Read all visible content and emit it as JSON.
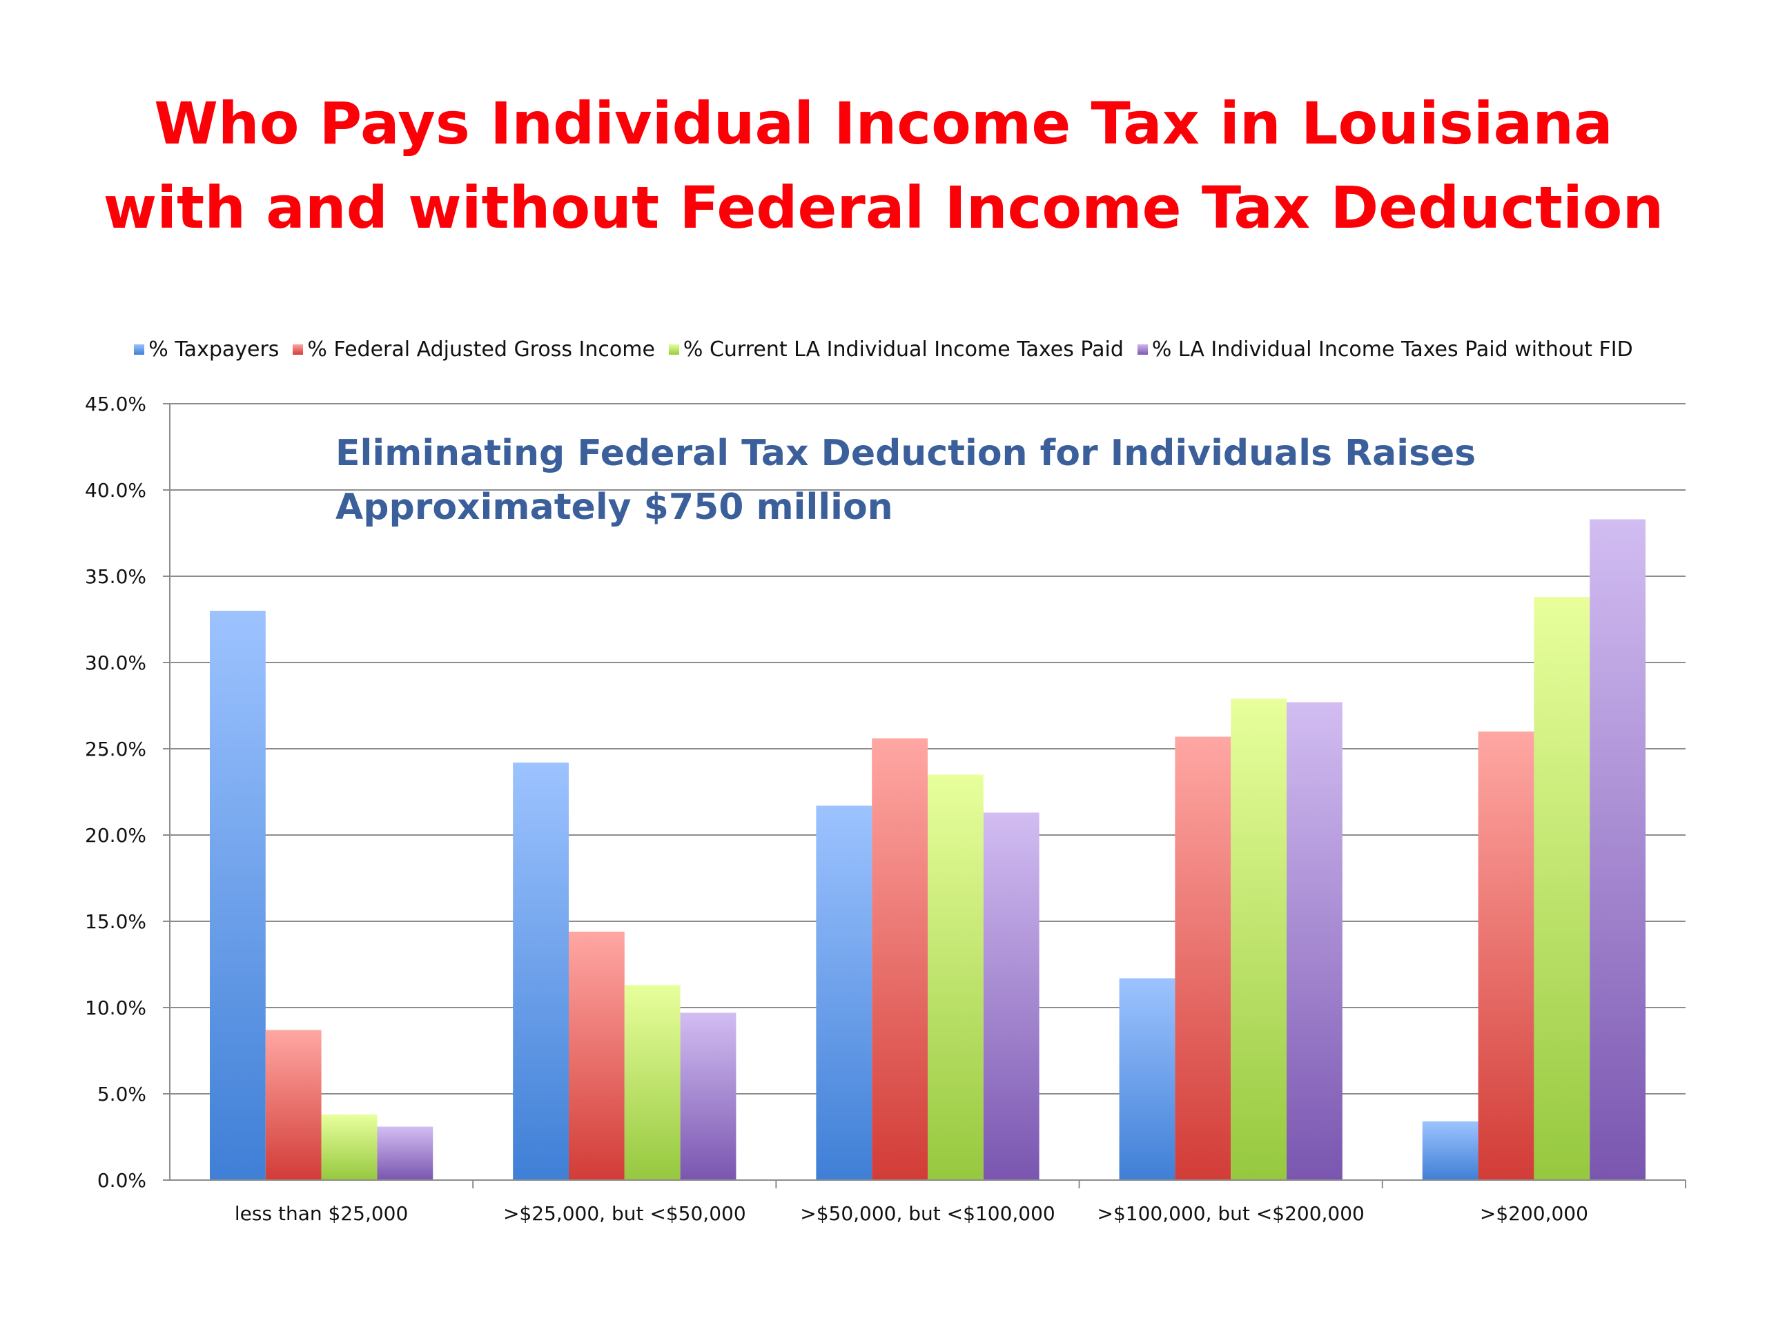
{
  "title": {
    "line1": "Who Pays Individual Income Tax in Louisiana",
    "line2": "with and without Federal Income Tax Deduction"
  },
  "annotation": {
    "line1": "Eliminating Federal Tax Deduction for Individuals Raises",
    "line2": "Approximately $750 million"
  },
  "chart_data": {
    "type": "bar",
    "categories": [
      "less than $25,000",
      ">$25,000, but <$50,000",
      ">$50,000, but <$100,000",
      ">$100,000, but <$200,000",
      ">$200,000"
    ],
    "series": [
      {
        "name": "% Taxpayers",
        "color": "#5b8fde",
        "values": [
          33.0,
          24.2,
          21.7,
          11.7,
          3.4
        ]
      },
      {
        "name": "% Federal Adjusted Gross Income",
        "color": "#e15b57",
        "values": [
          8.7,
          14.4,
          25.6,
          25.7,
          26.0
        ]
      },
      {
        "name": "% Current LA Individual Income Taxes Paid",
        "color": "#b5dd5b",
        "values": [
          3.8,
          11.3,
          23.5,
          27.9,
          33.8
        ]
      },
      {
        "name": "% LA Individual Income Taxes Paid without FID",
        "color": "#9b7fc6",
        "values": [
          3.1,
          9.7,
          21.3,
          27.7,
          38.3
        ]
      }
    ],
    "yticks": [
      "0.0%",
      "5.0%",
      "10.0%",
      "15.0%",
      "20.0%",
      "25.0%",
      "30.0%",
      "35.0%",
      "40.0%",
      "45.0%"
    ],
    "ylim": [
      0,
      45
    ],
    "grid": true,
    "legend_position": "top"
  }
}
